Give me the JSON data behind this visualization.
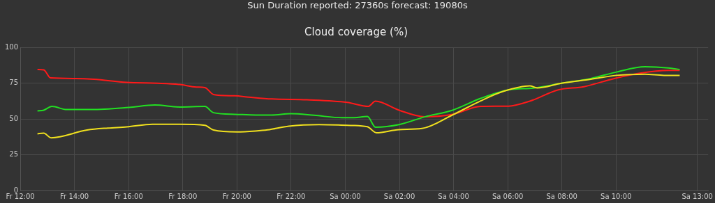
{
  "chart_data": {
    "type": "line",
    "subtitle": "Sun Duration reported: 27360s forecast: 19080s",
    "title": "Cloud coverage (%)",
    "grid": true,
    "legend": false,
    "marker": "none",
    "line_style": "solid",
    "xlim": [
      "--01-05T12:00",
      "--01-06T13:24"
    ],
    "xticks": [
      {
        "value": "--01-05T12:00",
        "label": "Fr 12:00"
      },
      {
        "value": "--01-05T14:00",
        "label": "Fr 14:00"
      },
      {
        "value": "--01-05T16:00",
        "label": "Fr 16:00"
      },
      {
        "value": "--01-05T18:00",
        "label": "Fr 18:00"
      },
      {
        "value": "--01-05T20:00",
        "label": "Fr 20:00"
      },
      {
        "value": "--01-05T22:00",
        "label": "Fr 22:00"
      },
      {
        "value": "--01-06T00:00",
        "label": "Sa 00:00"
      },
      {
        "value": "--01-06T02:00",
        "label": "Sa 02:00"
      },
      {
        "value": "--01-06T04:00",
        "label": "Sa 04:00"
      },
      {
        "value": "--01-06T06:00",
        "label": "Sa 06:00"
      },
      {
        "value": "--01-06T08:00",
        "label": "Sa 08:00"
      },
      {
        "value": "--01-06T10:00",
        "label": "Sa 10:00"
      },
      {
        "value": "--01-06T13:00",
        "label": "Sa 13:00"
      }
    ],
    "ylim": [
      0,
      100
    ],
    "yticks": [
      0,
      25,
      50,
      75,
      100
    ],
    "series": [
      {
        "color": "#ff1a1a",
        "x": [
          "--01-05T12:38",
          "--01-05T12:52",
          "--01-05T13:07",
          "--01-05T14:02",
          "--01-05T14:43",
          "--01-05T15:56",
          "--01-05T17:04",
          "--01-05T17:53",
          "--01-05T18:30",
          "--01-05T18:49",
          "--01-05T19:08",
          "--01-05T19:55",
          "--01-05T20:26",
          "--01-05T21:17",
          "--01-05T22:35",
          "--01-06T00:04",
          "--01-06T00:51",
          "--01-06T01:07",
          "--01-06T01:59",
          "--01-06T02:56",
          "--01-06T03:58",
          "--01-06T05:00",
          "--01-06T06:02",
          "--01-06T06:49",
          "--01-06T07:52",
          "--01-06T08:49",
          "--01-06T09:56",
          "--01-06T10:53",
          "--01-06T11:56",
          "--01-06T12:21"
        ],
        "values": [
          84.5,
          84.2,
          78.6,
          78.2,
          77.7,
          75.5,
          74.9,
          74.0,
          72.2,
          71.9,
          67.0,
          66.1,
          65.2,
          63.9,
          63.3,
          61.5,
          58.7,
          62.4,
          56.1,
          51.5,
          53.2,
          58.7,
          58.9,
          62.4,
          70.3,
          72.5,
          78.2,
          81.9,
          83.8,
          83.8
        ]
      },
      {
        "color": "#22e022",
        "x": [
          "--01-05T12:38",
          "--01-05T12:52",
          "--01-05T13:10",
          "--01-05T13:43",
          "--01-05T14:38",
          "--01-05T16:01",
          "--01-05T16:58",
          "--01-05T17:53",
          "--01-05T18:49",
          "--01-05T19:08",
          "--01-05T19:55",
          "--01-05T20:41",
          "--01-05T21:17",
          "--01-05T21:59",
          "--01-05T22:51",
          "--01-05T23:53",
          "--01-06T00:17",
          "--01-06T00:49",
          "--01-06T01:07",
          "--01-06T01:59",
          "--01-06T02:56",
          "--01-06T03:58",
          "--01-06T05:00",
          "--01-06T06:02",
          "--01-06T06:59",
          "--01-06T07:59",
          "--01-06T09:04",
          "--01-06T10:01",
          "--01-06T11:04",
          "--01-06T11:56",
          "--01-06T12:21"
        ],
        "values": [
          55.6,
          56.1,
          58.7,
          56.5,
          56.5,
          58.0,
          59.7,
          58.3,
          58.7,
          54.3,
          53.2,
          52.7,
          52.7,
          53.6,
          52.5,
          50.8,
          50.8,
          51.7,
          44.2,
          46.0,
          51.4,
          56.1,
          64.3,
          70.3,
          71.6,
          74.9,
          78.2,
          82.7,
          86.4,
          85.6,
          84.5
        ]
      },
      {
        "color": "#f0e01e",
        "x": [
          "--01-05T12:38",
          "--01-05T12:52",
          "--01-05T13:08",
          "--01-05T14:28",
          "--01-05T15:14",
          "--01-05T15:56",
          "--01-05T16:53",
          "--01-05T17:53",
          "--01-05T18:49",
          "--01-05T19:08",
          "--01-05T20:00",
          "--01-05T20:41",
          "--01-05T21:08",
          "--01-05T21:55",
          "--01-05T23:02",
          "--01-06T00:04",
          "--01-06T00:49",
          "--01-06T01:09",
          "--01-06T01:59",
          "--01-06T02:50",
          "--01-06T03:58",
          "--01-06T05:00",
          "--01-06T05:52",
          "--01-06T06:49",
          "--01-06T07:05",
          "--01-06T07:59",
          "--01-06T09:04",
          "--01-06T10:01",
          "--01-06T11:04",
          "--01-06T11:46",
          "--01-06T12:21"
        ],
        "values": [
          39.6,
          40.0,
          36.8,
          42.2,
          43.6,
          44.4,
          46.2,
          46.2,
          45.5,
          42.2,
          40.9,
          41.5,
          42.3,
          44.9,
          46.0,
          45.5,
          44.5,
          40.3,
          42.5,
          43.3,
          52.8,
          62.6,
          69.4,
          73.1,
          71.6,
          74.9,
          77.7,
          80.4,
          81.2,
          80.4,
          80.4
        ]
      }
    ]
  }
}
